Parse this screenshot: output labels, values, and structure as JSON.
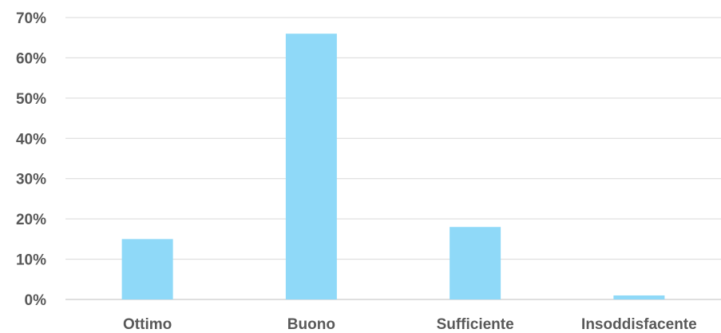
{
  "chart_data": {
    "type": "bar",
    "categories": [
      "Ottimo",
      "Buono",
      "Sufficiente",
      "Insoddisfacente"
    ],
    "values": [
      15,
      66,
      18,
      1
    ],
    "ylim": [
      0,
      70
    ],
    "yticks": [
      0,
      10,
      20,
      30,
      40,
      50,
      60,
      70
    ],
    "ytick_labels": [
      "0%",
      "10%",
      "20%",
      "30%",
      "40%",
      "50%",
      "60%",
      "70%"
    ],
    "grid": true,
    "legend": "none",
    "bar_color": "#8fd9f8",
    "title": "",
    "xlabel": "",
    "ylabel": ""
  }
}
